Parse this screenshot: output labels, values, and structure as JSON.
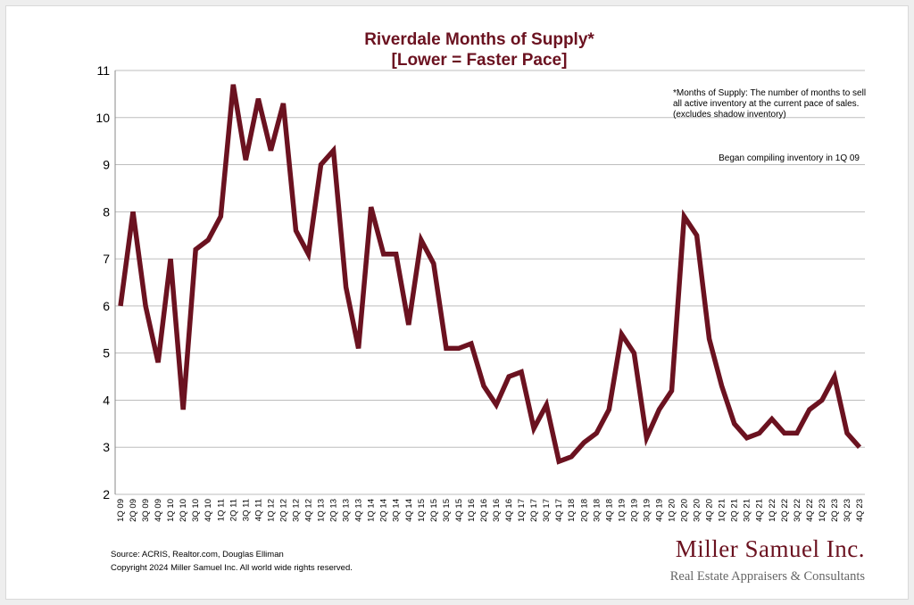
{
  "chart_data": {
    "type": "line",
    "title": "Riverdale Months of Supply*",
    "subtitle": "[Lower = Faster Pace]",
    "xlabel": "",
    "ylabel": "",
    "ylim": [
      2,
      11
    ],
    "yticks": [
      "2",
      "3",
      "4",
      "5",
      "6",
      "7",
      "8",
      "9",
      "10",
      "11"
    ],
    "grid": true,
    "line_color": "#6b1220",
    "categories": [
      "1Q 09",
      "2Q 09",
      "3Q 09",
      "4Q 09",
      "1Q 10",
      "2Q 10",
      "3Q 10",
      "4Q 10",
      "1Q 11",
      "2Q 11",
      "3Q 11",
      "4Q 11",
      "1Q 12",
      "2Q 12",
      "3Q 12",
      "4Q 12",
      "1Q 13",
      "2Q 13",
      "3Q 13",
      "4Q 13",
      "1Q 14",
      "2Q 14",
      "3Q 14",
      "4Q 14",
      "1Q 15",
      "2Q 15",
      "3Q 15",
      "4Q 15",
      "1Q 16",
      "2Q 16",
      "3Q 16",
      "4Q 16",
      "1Q 17",
      "2Q 17",
      "3Q 17",
      "4Q 17",
      "1Q 18",
      "2Q 18",
      "3Q 18",
      "4Q 18",
      "1Q 19",
      "2Q 19",
      "3Q 19",
      "4Q 19",
      "1Q 20",
      "2Q 20",
      "3Q 20",
      "4Q 20",
      "1Q 21",
      "2Q 21",
      "3Q 21",
      "4Q 21",
      "1Q 22",
      "2Q 22",
      "3Q 22",
      "4Q 22",
      "1Q 23",
      "2Q 23",
      "3Q 23",
      "4Q 23"
    ],
    "values": [
      6.0,
      8.0,
      6.0,
      4.8,
      7.0,
      3.8,
      7.2,
      7.4,
      7.9,
      10.7,
      9.1,
      10.4,
      9.3,
      10.3,
      7.6,
      7.1,
      9.0,
      9.3,
      6.4,
      5.1,
      8.1,
      7.1,
      7.1,
      5.6,
      7.4,
      6.9,
      5.1,
      5.1,
      5.2,
      4.3,
      3.9,
      4.5,
      4.6,
      3.4,
      3.9,
      2.7,
      2.8,
      3.1,
      3.3,
      3.8,
      5.4,
      5.0,
      3.2,
      3.8,
      4.2,
      7.9,
      7.5,
      5.3,
      4.3,
      3.5,
      3.2,
      3.3,
      3.6,
      3.3,
      3.3,
      3.8,
      4.0,
      4.5,
      3.3,
      3.0
    ],
    "annotations": [
      "*Months of Supply: The number of months to sell",
      "all active inventory at the current pace of sales.",
      "(excludes shadow inventory)",
      "Began compiling inventory in 1Q 09"
    ]
  },
  "footer": {
    "source": "Source: ACRIS, Realtor.com, Douglas Elliman",
    "copyright": "Copyright 2024 Miller Samuel Inc.  All world wide rights reserved."
  },
  "logo": {
    "name": "Miller Samuel Inc.",
    "tagline": "Real Estate Appraisers & Consultants"
  }
}
